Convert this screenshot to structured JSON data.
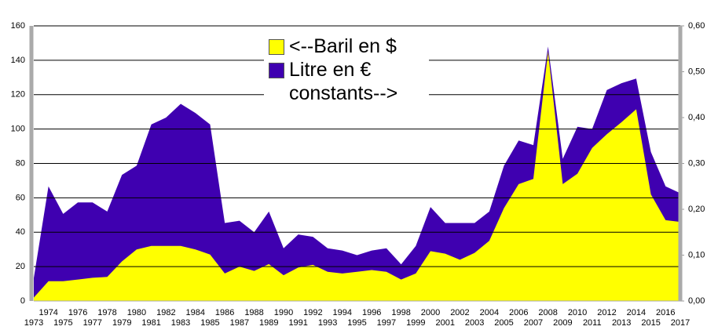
{
  "chart_data": {
    "type": "area",
    "categories": [
      "1973",
      "1974",
      "1975",
      "1976",
      "1977",
      "1978",
      "1979",
      "1980",
      "1981",
      "1982",
      "1983",
      "1984",
      "1985",
      "1986",
      "1987",
      "1988",
      "1989",
      "1990",
      "1991",
      "1992",
      "1993",
      "1994",
      "1995",
      "1996",
      "1997",
      "1998",
      "1999",
      "2000",
      "2001",
      "2002",
      "2003",
      "2004",
      "2005",
      "2006",
      "2007",
      "2008",
      "2009",
      "2010",
      "2011",
      "2012",
      "2013",
      "2014",
      "2015",
      "2016",
      "2017"
    ],
    "series": [
      {
        "name": "<--Baril en $",
        "color": "#ffff00",
        "values": [
          2,
          11.5,
          11.5,
          12.5,
          13.5,
          14,
          23,
          30,
          32,
          32,
          32,
          30,
          27,
          16,
          20,
          17.5,
          21.5,
          15,
          19.5,
          21,
          17,
          16,
          17,
          18,
          17,
          12.5,
          16,
          29,
          27.5,
          24,
          28,
          35,
          54,
          68,
          71,
          145,
          68,
          74,
          89,
          97,
          104,
          111.5,
          62,
          47,
          46
        ]
      },
      {
        "name": "Litre en € constants-->",
        "color": "#3f00b0",
        "axis": "y2",
        "values": [
          0.05,
          0.25,
          0.19,
          0.215,
          0.215,
          0.195,
          0.275,
          0.295,
          0.385,
          0.4,
          0.43,
          0.41,
          0.385,
          0.17,
          0.175,
          0.15,
          0.195,
          0.115,
          0.145,
          0.14,
          0.115,
          0.11,
          0.1,
          0.11,
          0.115,
          0.08,
          0.12,
          0.205,
          0.17,
          0.17,
          0.17,
          0.195,
          0.295,
          0.35,
          0.34,
          0.555,
          0.31,
          0.38,
          0.375,
          0.46,
          0.475,
          0.485,
          0.325,
          0.25,
          0.235
        ]
      }
    ],
    "ylim": [
      0,
      160
    ],
    "yticks": [
      0,
      20,
      40,
      60,
      80,
      100,
      120,
      140,
      160
    ],
    "y2lim": [
      0,
      0.6
    ],
    "y2ticks": [
      {
        "value": 0,
        "label": "0,00"
      },
      {
        "value": 0.1,
        "label": "0,10"
      },
      {
        "value": 0.2,
        "label": "0,20"
      },
      {
        "value": 0.3,
        "label": "0,30"
      },
      {
        "value": 0.4,
        "label": "0,40"
      },
      {
        "value": 0.5,
        "label": "0,50"
      },
      {
        "value": 0.6,
        "label": "0,60"
      }
    ],
    "grid": true
  }
}
